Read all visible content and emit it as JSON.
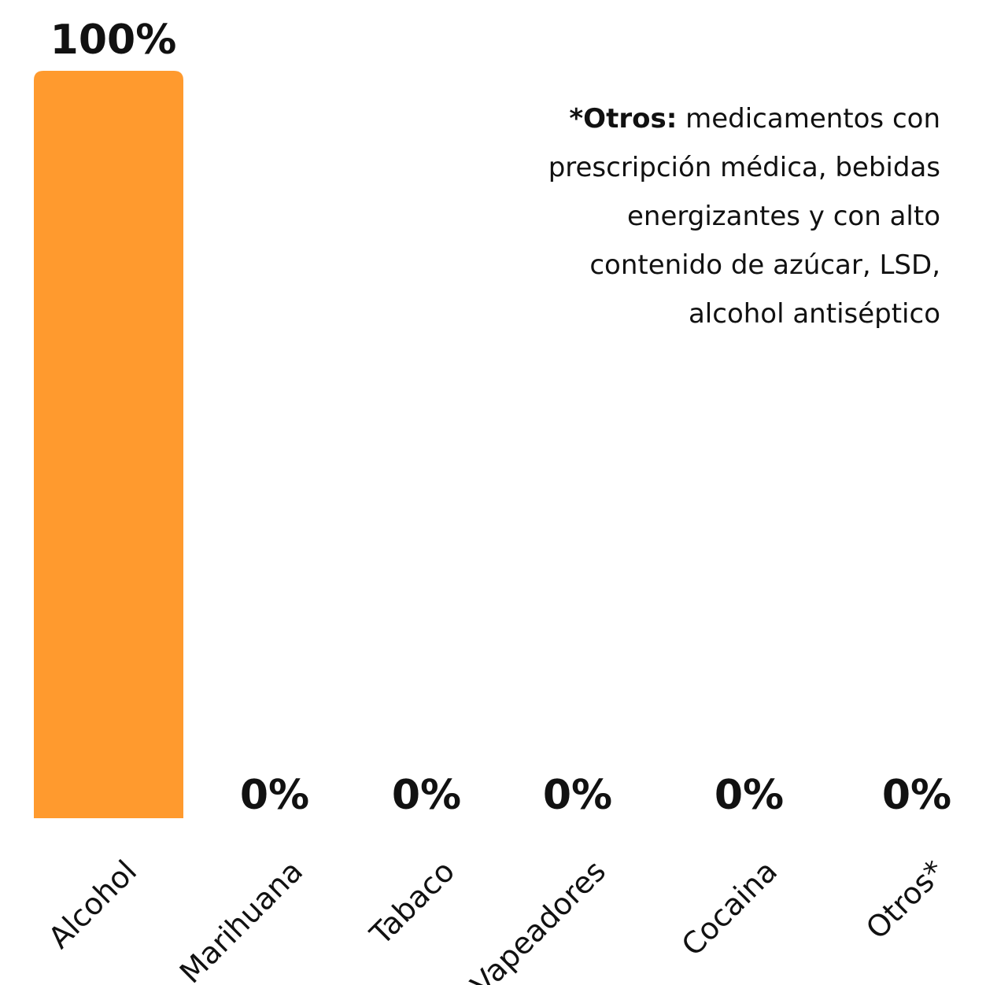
{
  "chart_data": {
    "type": "bar",
    "categories": [
      "Alcohol",
      "Marihuana",
      "Tabaco",
      "Vapeadores",
      "Cocaina",
      "Otros*"
    ],
    "values": [
      100,
      0,
      0,
      0,
      0,
      0
    ],
    "value_labels": [
      "100%",
      "0%",
      "0%",
      "0%",
      "0%",
      "0%"
    ],
    "ylim": [
      0,
      100
    ],
    "grid": false,
    "bar_color": "#FF9A2E",
    "text_color": "#111111"
  },
  "note": {
    "term": "*Otros:",
    "text": "medicamentos con prescripción médica, bebidas energizantes y con alto contenido de azúcar, LSD, alcohol antiséptico"
  }
}
